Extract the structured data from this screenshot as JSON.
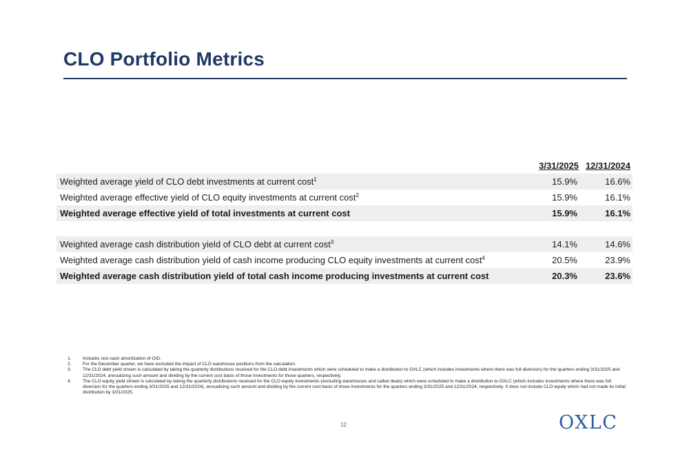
{
  "title": "CLO Portfolio Metrics",
  "table": {
    "columns": [
      "3/31/2025",
      "12/31/2024"
    ],
    "rows": [
      {
        "label": "Weighted average yield of CLO debt investments at current cost",
        "sup": "1",
        "v1": "15.9%",
        "v2": "16.6%"
      },
      {
        "label": "Weighted average effective yield of CLO equity investments at current cost",
        "sup": "2",
        "v1": "15.9%",
        "v2": "16.1%"
      },
      {
        "label": "Weighted average effective yield of total investments at current cost",
        "sup": "",
        "v1": "15.9%",
        "v2": "16.1%"
      },
      {
        "label": "Weighted average cash distribution yield of CLO debt at current cost",
        "sup": "3",
        "v1": "14.1%",
        "v2": "14.6%"
      },
      {
        "label": "Weighted average cash distribution yield of cash income producing CLO equity investments at current cost",
        "sup": "4",
        "v1": "20.5%",
        "v2": "23.9%"
      },
      {
        "label": "Weighted average cash distribution yield of total cash income producing investments at current cost",
        "sup": "",
        "v1": "20.3%",
        "v2": "23.6%"
      }
    ]
  },
  "footnotes": [
    {
      "num": "1.",
      "text": "Includes non-cash amortization of OID."
    },
    {
      "num": "2.",
      "text": "For the December quarter, we have excluded the impact of CLO warehouse positions from the calculation."
    },
    {
      "num": "3.",
      "text": "The CLO debt yield shown is calculated by taking the quarterly distributions received for the CLO debt investments which were scheduled to make a distribution to OXLC (which includes investments where there was full diversion) for the quarters ending 3/31/2025 and 12/31/2024, annualizing such amount and dividing by the current cost basis of those investments for those quarters, respectively."
    },
    {
      "num": "4.",
      "text": "The CLO equity yield shown is calculated by taking the quarterly distributions received for the CLO equity investments (excluding warehouses and called deals) which were scheduled to make a distribution to OXLC (which includes investments where there was full diversion for the quarters ending 3/31/2025 and 12/31/2024), annualizing such amount and dividing by the current cost basis of those investments for the quarters ending 3/31/2025 and 12/31/2024, respectively.  It does not include CLO equity which had not made its initial distribution by 3/31/2025."
    }
  ],
  "page_number": "12",
  "logo_text": "OXLC",
  "colors": {
    "title": "#1f3864",
    "logo": "#2e5aa3",
    "row_shade": "#eeeeee"
  }
}
